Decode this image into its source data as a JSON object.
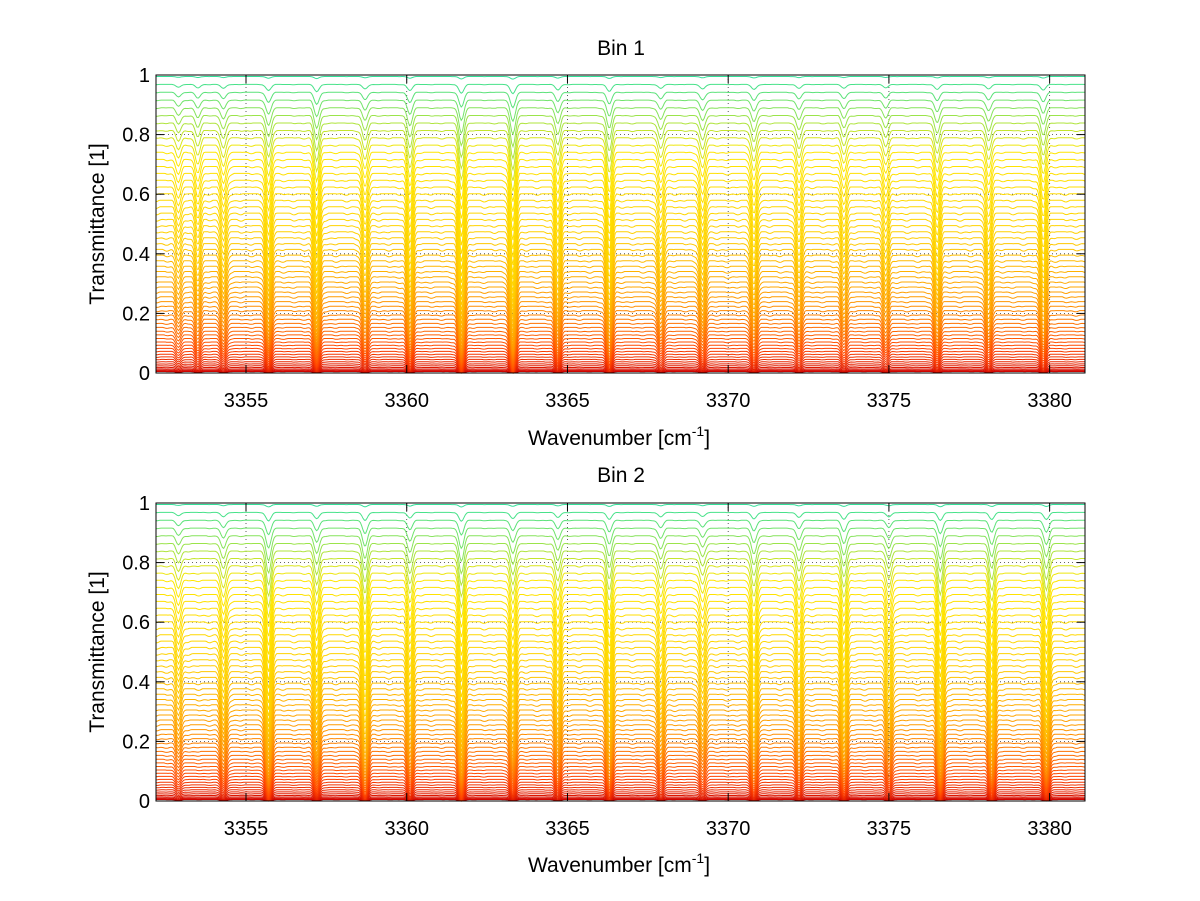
{
  "chart_data": [
    {
      "type": "line",
      "title": "Bin 1",
      "xlabel": "Wavenumber [cm",
      "xlabel_sup": "-1",
      "xlabel_end": "]",
      "ylabel": "Transmittance [1]",
      "xlim": [
        3352.2,
        3381.1
      ],
      "ylim": [
        0,
        1
      ],
      "xticks": [
        3355,
        3360,
        3365,
        3370,
        3375,
        3380
      ],
      "yticks": [
        0,
        0.2,
        0.4,
        0.6,
        0.8,
        1
      ],
      "grid": true,
      "legend": "none",
      "series_count": 60,
      "baseline_range": [
        0.005,
        0.995
      ],
      "colormap": [
        "#cc0000",
        "#ff4400",
        "#ff9900",
        "#ffd000",
        "#ffe600",
        "#00e0c0"
      ],
      "absorption_lines": [
        3352.9,
        3353.5,
        3354.3,
        3355.7,
        3357.2,
        3358.7,
        3360.1,
        3361.7,
        3363.3,
        3364.7,
        3366.3,
        3367.9,
        3369.2,
        3370.8,
        3372.2,
        3373.6,
        3374.9,
        3376.5,
        3378.1,
        3379.8
      ],
      "line_depths": [
        0.25,
        0.35,
        0.4,
        0.6,
        0.7,
        0.45,
        0.6,
        0.85,
        0.9,
        0.55,
        0.7,
        0.4,
        0.45,
        0.5,
        0.4,
        0.35,
        0.35,
        0.5,
        0.45,
        0.55
      ]
    },
    {
      "type": "line",
      "title": "Bin 2",
      "xlabel": "Wavenumber [cm",
      "xlabel_sup": "-1",
      "xlabel_end": "]",
      "ylabel": "Transmittance [1]",
      "xlim": [
        3352.2,
        3381.1
      ],
      "ylim": [
        0,
        1
      ],
      "xticks": [
        3355,
        3360,
        3365,
        3370,
        3375,
        3380
      ],
      "yticks": [
        0,
        0.2,
        0.4,
        0.6,
        0.8,
        1
      ],
      "grid": true,
      "legend": "none",
      "series_count": 60,
      "baseline_range": [
        0.005,
        0.995
      ],
      "colormap": [
        "#cc0000",
        "#ff4400",
        "#ff9900",
        "#ffd000",
        "#ffe600",
        "#00e0c0"
      ],
      "absorption_lines": [
        3352.9,
        3354.3,
        3355.7,
        3357.2,
        3358.7,
        3360.1,
        3361.7,
        3363.3,
        3364.7,
        3366.3,
        3367.9,
        3369.2,
        3370.8,
        3372.2,
        3373.6,
        3375.0,
        3376.6,
        3378.2,
        3379.9
      ],
      "line_depths": [
        0.3,
        0.45,
        0.85,
        0.6,
        0.8,
        0.55,
        0.85,
        0.6,
        0.5,
        0.7,
        0.45,
        0.4,
        0.65,
        0.5,
        0.65,
        0.45,
        0.8,
        0.7,
        0.7
      ]
    }
  ]
}
